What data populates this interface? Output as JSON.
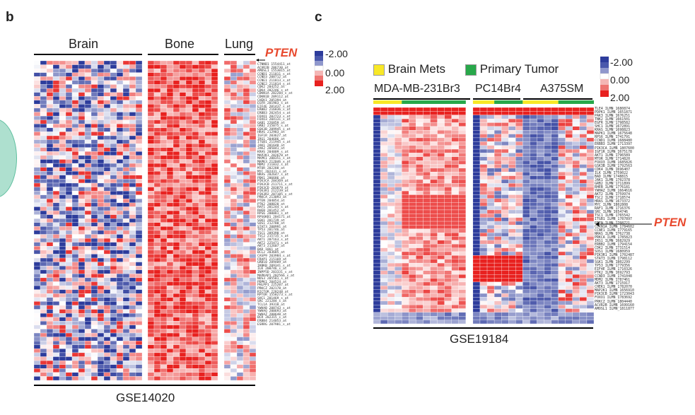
{
  "panel_b": {
    "letter": "b",
    "groups": [
      "Brain",
      "Bone",
      "Lung"
    ],
    "dataset": "GSE14020",
    "highlight_gene": "PTEN",
    "gene_labels": [
      "CTNNB1 1554411_at",
      "ACVR2B 206730_at",
      "AMOSL1 1553015_at",
      "CCND1 211811_s_at",
      "CCND3 208712_at",
      "CCNE1 211813_s_at",
      "CCNE2 211814_s_at",
      "CDK2 204252_at",
      "CDK4 202246_s_at",
      "CDKN1A 202284_s_at",
      "CDKN1B 209112_at",
      "CHEK1 205394_at",
      "EGFR 201983_s_at",
      "EIF4E 201437_s_at",
      "ERBB2 216836_s_at",
      "ERBB3 202454_s_at",
      "FOXO1 202723_s_at",
      "FOXO3 204131_s_at",
      "GAB1 226859_at",
      "GRB2 215075_s_at",
      "GSK3B 209945_s_at",
      "HRAS 212983_at",
      "IGF1R 203627_at",
      "IRS1 204686_at",
      "ITGB1 211945_s_at",
      "JAK1 201648_at",
      "JAK2 205841_at",
      "KRAS 204009_s_at",
      "MAP2K1 202670_at",
      "MAPK1 208351_s_at",
      "MAPK3 212046_x_at",
      "MDM2 211832_s_at",
      "MTOR 202288_at",
      "MYC 202431_s_at",
      "NRAS 202647_s_at",
      "PDK1 206686_at",
      "PIK3CA 204369_at",
      "PIK3CB 211711_s_at",
      "PIK3CD 203879_at",
      "PIK3R1 212239_at",
      "PIK3R2 207105_s_at",
      "PRKCA 213093_at",
      "PTEN 204054_at",
      "PTK2 208820_at",
      "RAF1 201244_s_at",
      "RHEB 201452_at",
      "RPS6 200081_s_at",
      "RPS6KB1 204171_at",
      "SGK1 201739_at",
      "SOS1 212780_at",
      "STAT3 208991_at",
      "TP53 201746_at",
      "TSC1 209390_at",
      "TSC2 215735_s_at",
      "AKT1 207163_s_at",
      "AKT2 225471_s_at",
      "AKT3 212607_at",
      "BAD 1861_at",
      "BCL2 203685_at",
      "CASP9 203984_s_at",
      "FRAP1 215169_at",
      "GRB10 209409_at",
      "IKBKB 209341_s_at",
      "ILK 200746_s_at",
      "INPP5D 203331_s_at",
      "MAPKAP1 202566_s_at",
      "NOS3 205581_s_at",
      "PDPK1 204524_at",
      "PHLPP1 225207_at",
      "PRKCZ 202178_at",
      "RICTOR 228248_at",
      "RPTOR 1558273_s_at",
      "SHC1 201469_s_at",
      "SRC 221284_s_at",
      "TCL1A 39318_at",
      "YWHAB 208743_s_at",
      "YWHAQ 200693_at",
      "YWHAZ 200640_at",
      "BCR 202315_s_at",
      "ERBB4 214053_at",
      "ESRRG 207981_s_at"
    ]
  },
  "panel_c": {
    "letter": "c",
    "legend_brain": "Brain Mets",
    "legend_primary": "Primary Tumor",
    "groups": [
      "MDA-MB-231Br3",
      "PC14Br4",
      "A375SM"
    ],
    "dataset": "GSE19184",
    "highlight_gene": "PTEN",
    "gene_labels": [
      "TLE4 ILMN_1680874",
      "PDPK1 ILMN_1651871",
      "PAK3 ILMN_1676251",
      "TNK2 ILMN_1661501",
      "EGFR ILMN_1798582",
      "SHC1 ILMN_1672891",
      "KRAS ILMN_1698823",
      "MAPK1 ILMN_1675648",
      "RPS6 ILMN_1741791",
      "CCND1 ILMN_1688480",
      "ERBB3 ILMN_1713397",
      "PIK3CA ILMN_1807600",
      "IGF1R ILMN_1675178",
      "AKT1 ILMN_1796589",
      "MTOR ILMN_1714820",
      "FOXO3 ILMN_1685826",
      "GSK3B ILMN_1792563",
      "CDK4 ILMN_1696407",
      "ILK ILMN_1759022",
      "BAD ILMN_1748815",
      "JAK1 ILMN_1702378",
      "GRB2 ILMN_1711899",
      "RHEB ILMN_1776181",
      "YWHAZ ILMN_1664616",
      "AKT2 ILMN_1759974",
      "TSC2 ILMN_1718574",
      "HRAS ILMN_1673372",
      "MYC ILMN_1802808",
      "RAF1 ILMN_1716376",
      "SRC ILMN_1654746",
      "TSC1 ILMN_1765542",
      "ITGB1 ILMN_1787897",
      "PTEN ILMN_1708721",
      "CDKN1A ILMN_1784602",
      "CCNE1 ILMN_1779165",
      "NRAS ILMN_1762738",
      "PRKCA ILMN_1785823",
      "IRS1 ILMN_1682929",
      "ERBB2 ILMN_1794154",
      "CDK2 ILMN_1731514",
      "SOS1 ILMN_1680959",
      "PIK3R1 ILMN_1702487",
      "STAT3 ILMN_1798112",
      "SGK1 ILMN_1802299",
      "TP53 ILMN_1779356",
      "EIF4E ILMN_1710326",
      "PTK2 ILMN_1692793",
      "CCND3 ILMN_1741048",
      "MDM2 ILMN_1787461",
      "AKT3 ILMN_1715917",
      "CHEK1 ILMN_1782070",
      "MAP2K1 ILMN_1656910",
      "PIK3CB ILMN_1723043",
      "FOXO1 ILMN_1783692",
      "PRKCZ ILMN_1804440",
      "ACVR2B ILMN_1699160",
      "AMOSL1 ILMN_1811877"
    ]
  },
  "scale": {
    "labels": [
      "-2.00",
      "0.00",
      "2.00"
    ],
    "colors": [
      "#2d3c9c",
      "#ffffff",
      "#e8211f"
    ]
  },
  "colors": {
    "brain_mets": "#f8e827",
    "primary_tumor": "#28a84a",
    "pten": "#e8492e",
    "teal": "#5fbf9f"
  }
}
